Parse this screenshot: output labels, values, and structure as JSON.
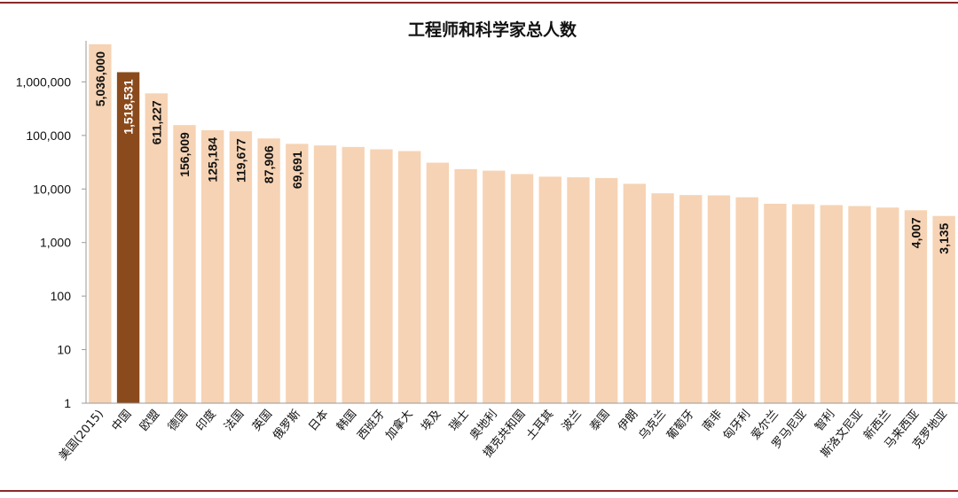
{
  "colors": {
    "bar": "#f6d3b4",
    "highlight": "#8b4a1c",
    "rule": "#8b2a2a",
    "axis": "#9a9a9a"
  },
  "chart_data": {
    "type": "bar",
    "title": "工程师和科学家总人数",
    "xlabel": "",
    "ylabel": "",
    "yscale": "log",
    "ylim": [
      1,
      5036000
    ],
    "yticks": [
      1,
      10,
      100,
      1000,
      10000,
      100000,
      1000000
    ],
    "ytick_labels": [
      "1",
      "10",
      "100",
      "1,000",
      "10,000",
      "100,000",
      "1,000,000"
    ],
    "grid": false,
    "legend": "none",
    "highlight_index": 1,
    "categories": [
      "美国(2015)",
      "中国",
      "欧盟",
      "德国",
      "印度",
      "法国",
      "英国",
      "俄罗斯",
      "日本",
      "韩国",
      "西班牙",
      "加拿大",
      "埃及",
      "瑞士",
      "奥地利",
      "捷克共和国",
      "土耳其",
      "波兰",
      "泰国",
      "伊朗",
      "乌克兰",
      "葡萄牙",
      "南非",
      "匈牙利",
      "爱尔兰",
      "罗马尼亚",
      "智利",
      "斯洛文尼亚",
      "新西兰",
      "马来西亚",
      "克罗地亚"
    ],
    "values": [
      5036000,
      1518531,
      611227,
      156009,
      125184,
      119677,
      87906,
      69691,
      65000,
      61000,
      55000,
      51000,
      31000,
      23500,
      22000,
      19000,
      17000,
      16500,
      16000,
      12500,
      8300,
      7700,
      7600,
      7000,
      5300,
      5200,
      5000,
      4800,
      4500,
      4007,
      3135
    ],
    "data_labels": [
      "5,036,000",
      "1,518,531",
      "611,227",
      "156,009",
      "125,184",
      "119,677",
      "87,906",
      "69,691",
      null,
      null,
      null,
      null,
      null,
      null,
      null,
      null,
      null,
      null,
      null,
      null,
      null,
      null,
      null,
      null,
      null,
      null,
      null,
      null,
      null,
      "4,007",
      "3,135"
    ]
  }
}
